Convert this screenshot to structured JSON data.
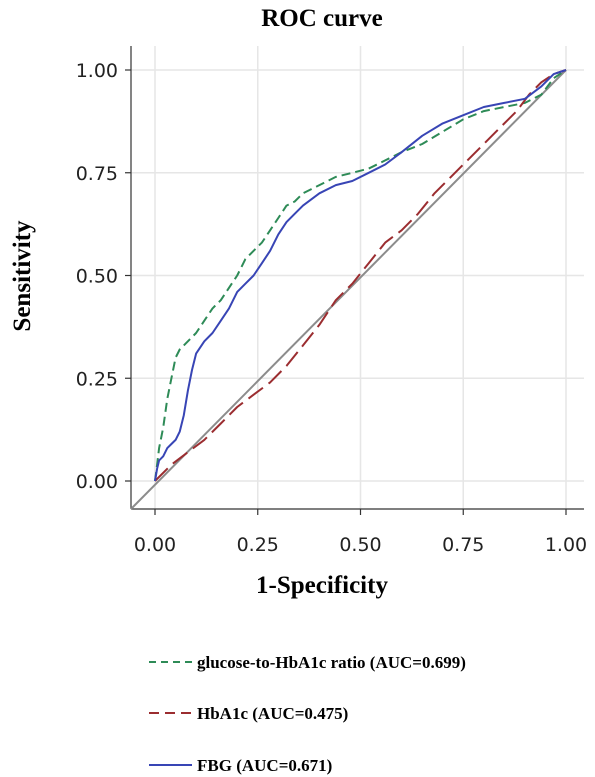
{
  "chart_data": {
    "type": "line",
    "title": "ROC curve",
    "xlabel": "1-Specificity",
    "ylabel": "Sensitivity",
    "xlim": [
      0,
      1
    ],
    "ylim": [
      0,
      1
    ],
    "xticks": [
      "0.00",
      "0.25",
      "0.50",
      "0.75",
      "1.00"
    ],
    "yticks": [
      "0.00",
      "0.25",
      "0.50",
      "0.75",
      "1.00"
    ],
    "grid": true,
    "legend_position": "bottom",
    "diagonal_color": "#8c8c8c",
    "series": [
      {
        "name": "glucose-to-HbA1c ratio (AUC=0.699)",
        "color": "#2e8b57",
        "dash": "dashed",
        "x": [
          0.0,
          0.005,
          0.01,
          0.02,
          0.03,
          0.04,
          0.05,
          0.06,
          0.07,
          0.09,
          0.1,
          0.12,
          0.14,
          0.16,
          0.18,
          0.2,
          0.22,
          0.24,
          0.26,
          0.28,
          0.3,
          0.32,
          0.34,
          0.36,
          0.4,
          0.44,
          0.48,
          0.52,
          0.56,
          0.6,
          0.65,
          0.7,
          0.75,
          0.8,
          0.85,
          0.9,
          0.94,
          0.97,
          1.0
        ],
        "y": [
          0.0,
          0.04,
          0.08,
          0.13,
          0.2,
          0.25,
          0.3,
          0.32,
          0.33,
          0.35,
          0.36,
          0.39,
          0.42,
          0.44,
          0.47,
          0.5,
          0.54,
          0.56,
          0.58,
          0.61,
          0.64,
          0.67,
          0.68,
          0.7,
          0.72,
          0.74,
          0.75,
          0.76,
          0.78,
          0.8,
          0.82,
          0.85,
          0.88,
          0.9,
          0.91,
          0.92,
          0.94,
          0.98,
          1.0
        ]
      },
      {
        "name": "HbA1c (AUC=0.475)",
        "color": "#9b2d30",
        "dash": "longdash",
        "x": [
          0.0,
          0.04,
          0.08,
          0.12,
          0.16,
          0.2,
          0.24,
          0.28,
          0.32,
          0.36,
          0.4,
          0.44,
          0.48,
          0.52,
          0.56,
          0.6,
          0.64,
          0.68,
          0.72,
          0.76,
          0.8,
          0.84,
          0.88,
          0.91,
          0.94,
          0.97,
          1.0
        ],
        "y": [
          0.0,
          0.04,
          0.07,
          0.1,
          0.14,
          0.18,
          0.21,
          0.24,
          0.28,
          0.33,
          0.38,
          0.44,
          0.48,
          0.53,
          0.58,
          0.61,
          0.65,
          0.7,
          0.74,
          0.78,
          0.82,
          0.86,
          0.9,
          0.94,
          0.97,
          0.99,
          1.0
        ]
      },
      {
        "name": "FBG (AUC=0.671)",
        "color": "#3845b5",
        "dash": "solid",
        "x": [
          0.0,
          0.005,
          0.01,
          0.02,
          0.03,
          0.04,
          0.05,
          0.06,
          0.07,
          0.08,
          0.09,
          0.1,
          0.12,
          0.14,
          0.16,
          0.18,
          0.2,
          0.22,
          0.24,
          0.26,
          0.28,
          0.3,
          0.32,
          0.34,
          0.36,
          0.4,
          0.44,
          0.48,
          0.52,
          0.56,
          0.6,
          0.65,
          0.7,
          0.75,
          0.8,
          0.85,
          0.9,
          0.94,
          0.97,
          1.0
        ],
        "y": [
          0.0,
          0.03,
          0.05,
          0.06,
          0.08,
          0.09,
          0.1,
          0.12,
          0.16,
          0.22,
          0.27,
          0.31,
          0.34,
          0.36,
          0.39,
          0.42,
          0.46,
          0.48,
          0.5,
          0.53,
          0.56,
          0.6,
          0.63,
          0.65,
          0.67,
          0.7,
          0.72,
          0.73,
          0.75,
          0.77,
          0.8,
          0.84,
          0.87,
          0.89,
          0.91,
          0.92,
          0.93,
          0.96,
          0.99,
          1.0
        ]
      }
    ]
  }
}
